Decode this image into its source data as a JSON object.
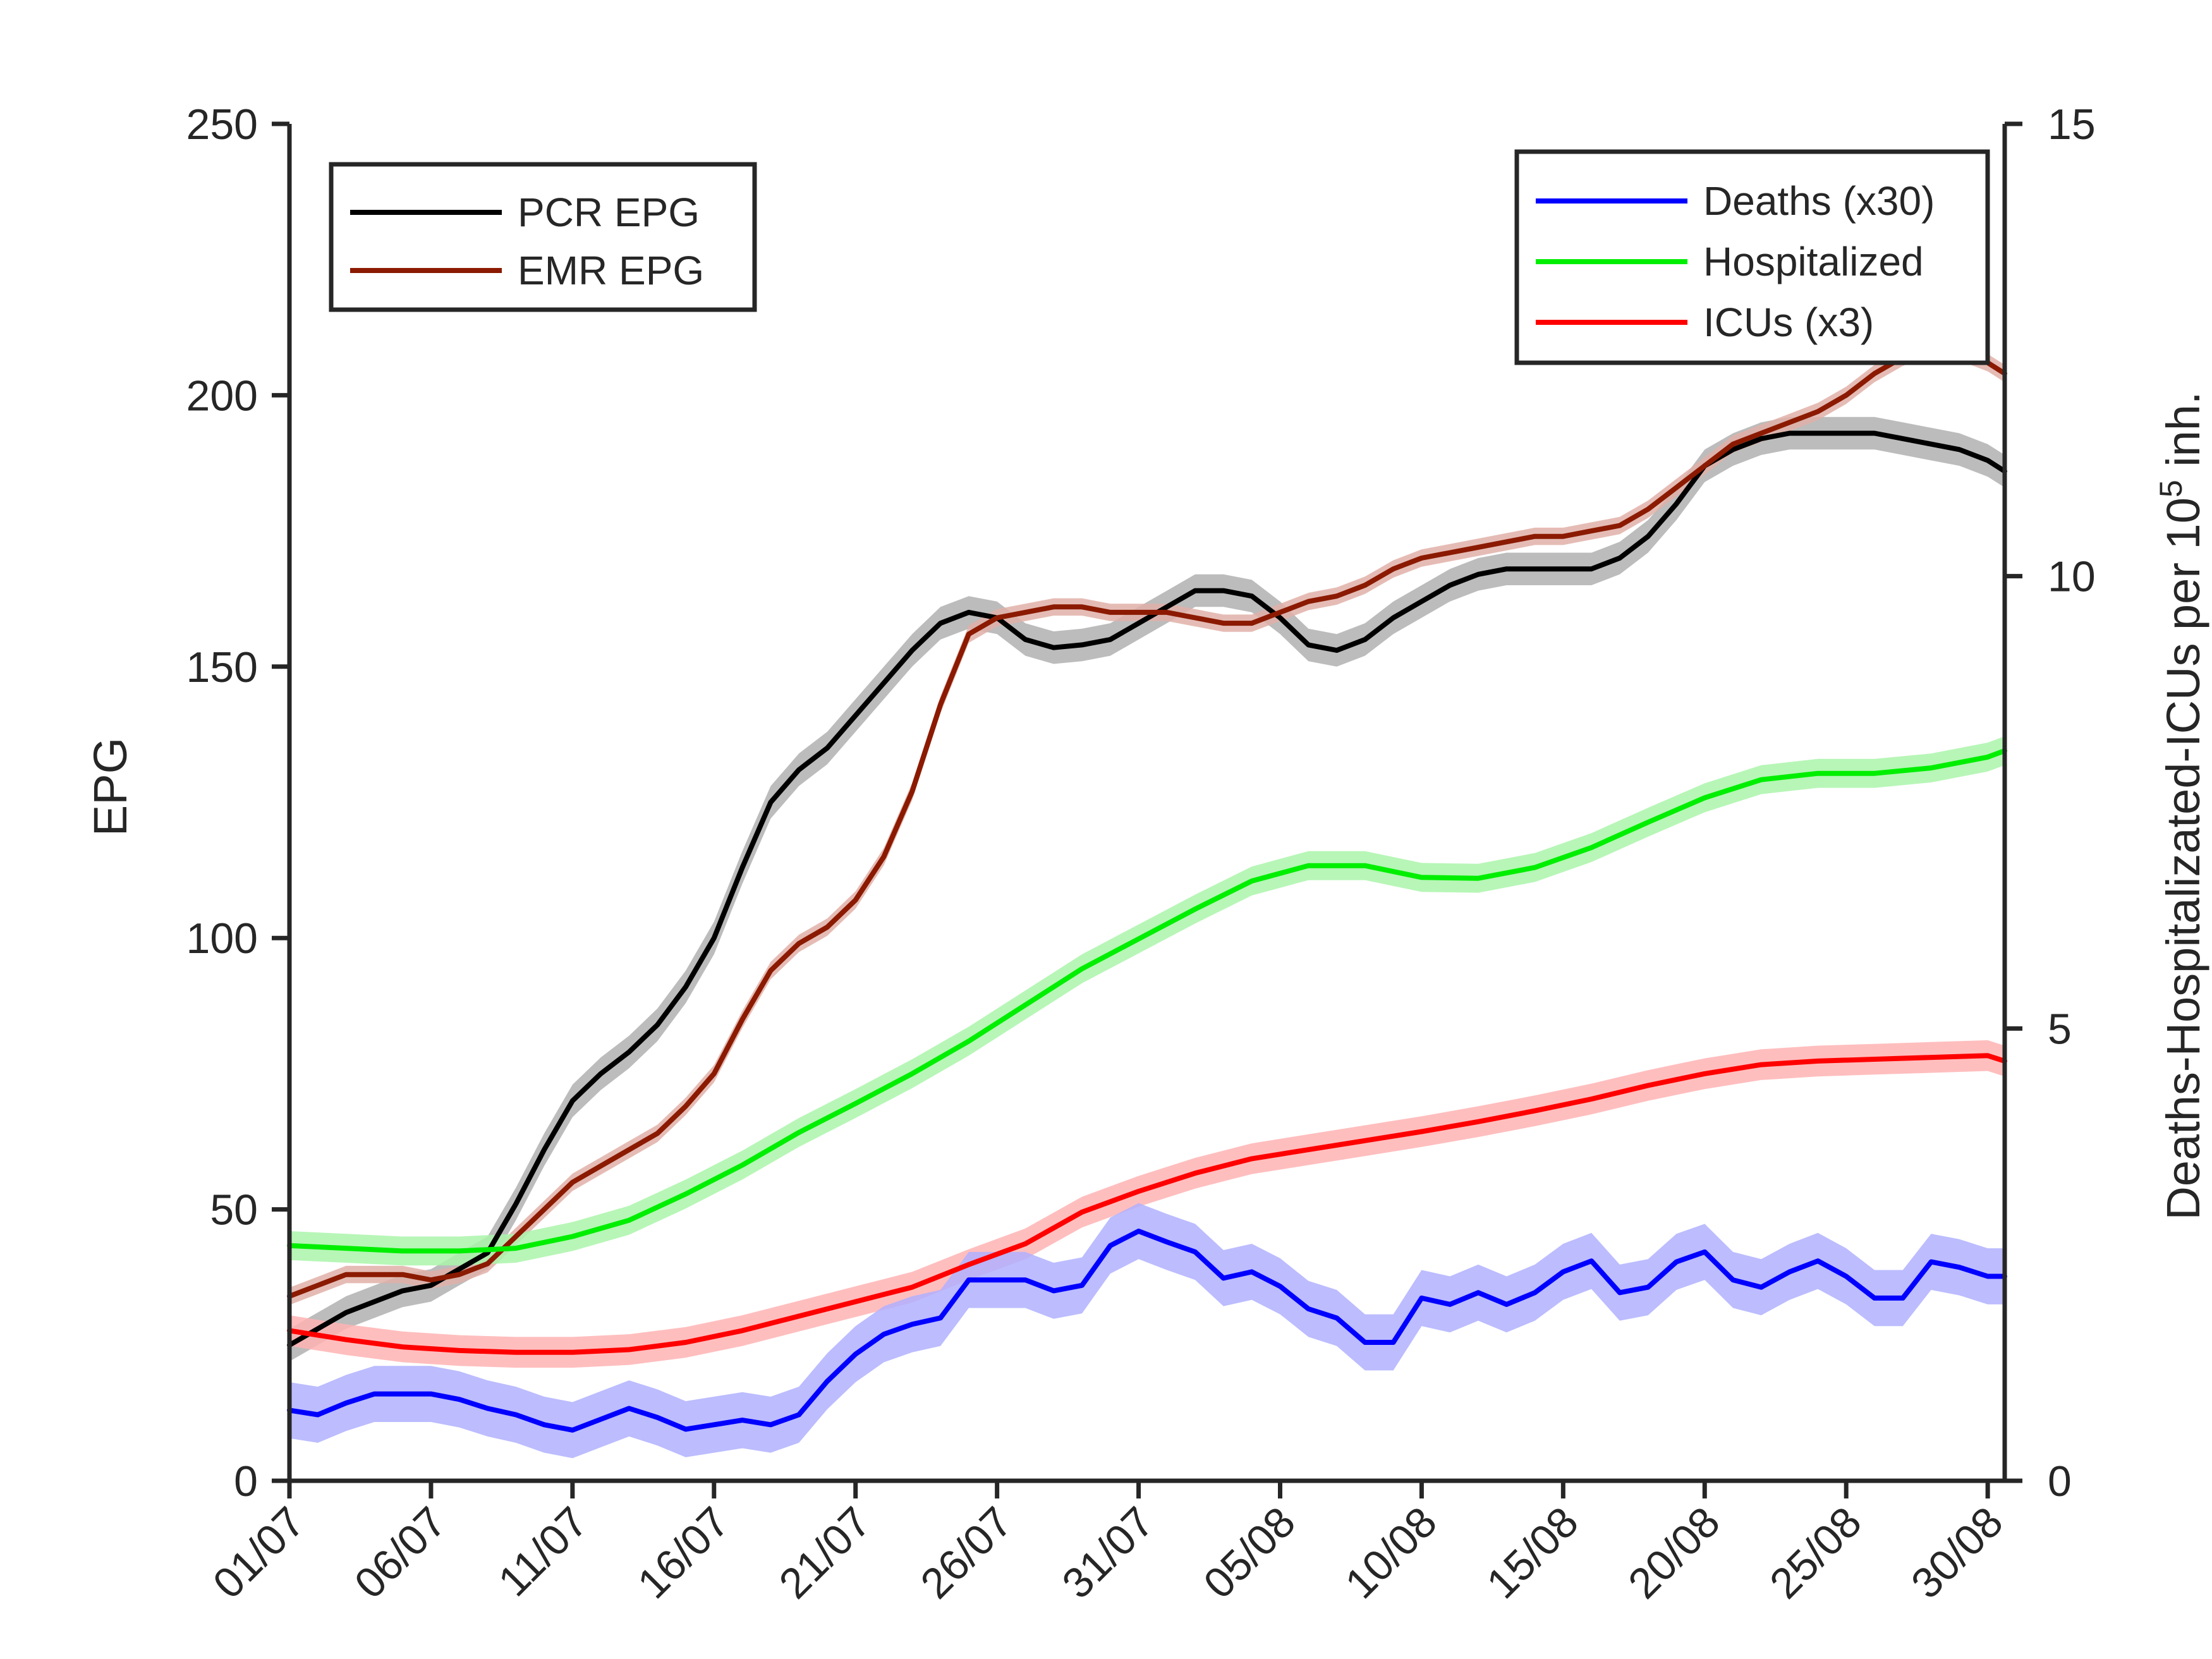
{
  "chart_data": {
    "type": "line",
    "title": "",
    "xlabel": "",
    "ylabel": "EPG",
    "ylabel_right": "Deaths-Hospitalizated-ICUs per 10",
    "ylabel_right_sup": "5",
    "ylabel_right_suffix": " inh.",
    "ylim": [
      0,
      250
    ],
    "ylim_right": [
      0,
      15
    ],
    "yticks": [
      "0",
      "50",
      "100",
      "150",
      "200",
      "250"
    ],
    "yticks_right": [
      "0",
      "5",
      "10",
      "15"
    ],
    "xticks": [
      "01/07",
      "06/07",
      "11/07",
      "16/07",
      "21/07",
      "26/07",
      "31/07",
      "05/08",
      "10/08",
      "15/08",
      "20/08",
      "25/08",
      "30/08"
    ],
    "x_days": [
      0,
      5,
      10,
      15,
      20,
      25,
      30,
      35,
      40,
      45,
      50,
      55,
      60
    ],
    "grid": false,
    "legend_left": {
      "placement": "top-left",
      "entries": [
        "PCR EPG",
        "EMR EPG"
      ]
    },
    "legend_right": {
      "placement": "top-right",
      "entries": [
        "Deaths (x30)",
        "Hospitalized",
        "ICUs (x3)"
      ]
    },
    "series": [
      {
        "name": "PCR EPG",
        "axis": "left",
        "color": "#000000",
        "band_color": "#b0b0b0",
        "band_hw": 3,
        "x": [
          0,
          2,
          4,
          5,
          6,
          7,
          8,
          9,
          10,
          11,
          12,
          13,
          14,
          15,
          16,
          17,
          18,
          19,
          20,
          21,
          22,
          23,
          24,
          25,
          26,
          27,
          28,
          29,
          30,
          31,
          32,
          33,
          34,
          35,
          36,
          37,
          38,
          39,
          40,
          41,
          42,
          43,
          44,
          45,
          46,
          47,
          48,
          49,
          50,
          51,
          52,
          53,
          54,
          55,
          56,
          57,
          58,
          59,
          60,
          60.6
        ],
        "values": [
          25,
          31,
          35,
          36,
          39,
          42,
          51,
          61,
          70,
          75,
          79,
          84,
          91,
          100,
          113,
          125,
          131,
          135,
          141,
          147,
          153,
          158,
          160,
          159,
          155,
          153.5,
          154,
          155,
          158,
          161,
          164,
          164,
          163,
          159,
          154,
          153,
          155,
          159,
          162,
          165,
          167,
          168,
          168,
          168,
          168,
          170,
          174,
          180,
          187,
          190,
          192,
          193,
          193,
          193,
          193,
          192,
          191,
          190,
          188,
          186
        ]
      },
      {
        "name": "EMR EPG",
        "axis": "left",
        "color": "#8b1a00",
        "band_color": "#e0b0a8",
        "band_hw": 1.6,
        "x": [
          0,
          1,
          2,
          3,
          4,
          5,
          6,
          7,
          8,
          9,
          10,
          11,
          12,
          13,
          14,
          15,
          16,
          17,
          18,
          19,
          20,
          21,
          22,
          23,
          24,
          25,
          26,
          27,
          28,
          29,
          30,
          31,
          32,
          33,
          34,
          35,
          36,
          37,
          38,
          39,
          40,
          41,
          42,
          43,
          44,
          45,
          46,
          47,
          48,
          49,
          50,
          51,
          52,
          53,
          54,
          55,
          56,
          57,
          58,
          59,
          60,
          60.6
        ],
        "values": [
          34,
          36,
          38,
          38,
          38,
          37,
          38,
          40,
          45,
          50,
          55,
          58,
          61,
          64,
          69,
          75,
          85,
          94,
          99,
          102,
          107,
          115,
          127,
          143,
          156,
          159,
          160,
          161,
          161,
          160,
          160,
          160,
          159,
          158,
          158,
          160,
          162,
          163,
          165,
          168,
          170,
          171,
          172,
          173,
          174,
          174,
          175,
          176,
          179,
          183,
          187,
          191,
          193,
          195,
          197,
          200,
          204,
          207,
          209,
          208,
          206,
          204
        ]
      },
      {
        "name": "Hospitalized",
        "axis": "right",
        "color": "#00ee00",
        "band_color": "#aaf5aa",
        "band_hw": 0.16,
        "x": [
          0,
          2,
          4,
          6,
          8,
          10,
          12,
          14,
          16,
          18,
          20,
          22,
          24,
          26,
          28,
          30,
          32,
          34,
          36,
          38,
          40,
          42,
          44,
          46,
          48,
          50,
          52,
          54,
          56,
          58,
          60,
          60.6
        ],
        "values": [
          2.6,
          2.57,
          2.54,
          2.54,
          2.57,
          2.7,
          2.88,
          3.17,
          3.49,
          3.85,
          4.17,
          4.5,
          4.86,
          5.26,
          5.66,
          5.99,
          6.32,
          6.63,
          6.8,
          6.8,
          6.67,
          6.66,
          6.78,
          7.0,
          7.28,
          7.55,
          7.75,
          7.82,
          7.82,
          7.88,
          8.0,
          8.07
        ]
      },
      {
        "name": "ICUs (x3)",
        "axis": "right",
        "color": "#ff0000",
        "band_color": "#ffb3b3",
        "band_hw": 0.17,
        "x": [
          0,
          2,
          4,
          6,
          8,
          10,
          12,
          14,
          16,
          18,
          20,
          22,
          24,
          26,
          28,
          30,
          32,
          34,
          36,
          38,
          40,
          42,
          44,
          46,
          48,
          50,
          52,
          54,
          56,
          58,
          60,
          60.6
        ],
        "values": [
          1.66,
          1.56,
          1.48,
          1.44,
          1.42,
          1.42,
          1.45,
          1.53,
          1.66,
          1.82,
          1.98,
          2.14,
          2.39,
          2.62,
          2.97,
          3.2,
          3.4,
          3.56,
          3.66,
          3.76,
          3.86,
          3.97,
          4.09,
          4.22,
          4.37,
          4.5,
          4.6,
          4.64,
          4.66,
          4.68,
          4.7,
          4.64
        ]
      },
      {
        "name": "Deaths (x30)",
        "axis": "right",
        "color": "#0000ff",
        "band_color": "#b0b0ff",
        "band_hw": 0.31,
        "x": [
          0,
          1,
          2,
          3,
          4,
          5,
          6,
          7,
          8,
          9,
          10,
          11,
          12,
          13,
          14,
          15,
          16,
          17,
          18,
          19,
          20,
          21,
          22,
          23,
          24,
          25,
          26,
          27,
          28,
          29,
          30,
          31,
          32,
          33,
          34,
          35,
          36,
          37,
          38,
          39,
          40,
          41,
          42,
          43,
          44,
          45,
          46,
          47,
          48,
          49,
          50,
          51,
          52,
          53,
          54,
          55,
          56,
          57,
          58,
          59,
          60,
          60.6
        ],
        "values": [
          0.78,
          0.73,
          0.86,
          0.96,
          0.96,
          0.96,
          0.9,
          0.8,
          0.73,
          0.62,
          0.56,
          0.68,
          0.8,
          0.7,
          0.57,
          0.62,
          0.67,
          0.62,
          0.73,
          1.1,
          1.4,
          1.62,
          1.73,
          1.8,
          2.22,
          2.22,
          2.22,
          2.1,
          2.16,
          2.6,
          2.76,
          2.64,
          2.53,
          2.24,
          2.31,
          2.15,
          1.9,
          1.8,
          1.53,
          1.53,
          2.02,
          1.95,
          2.08,
          1.95,
          2.08,
          2.31,
          2.43,
          2.08,
          2.14,
          2.42,
          2.53,
          2.22,
          2.14,
          2.31,
          2.43,
          2.26,
          2.02,
          2.02,
          2.42,
          2.36,
          2.26,
          2.26
        ]
      }
    ]
  }
}
